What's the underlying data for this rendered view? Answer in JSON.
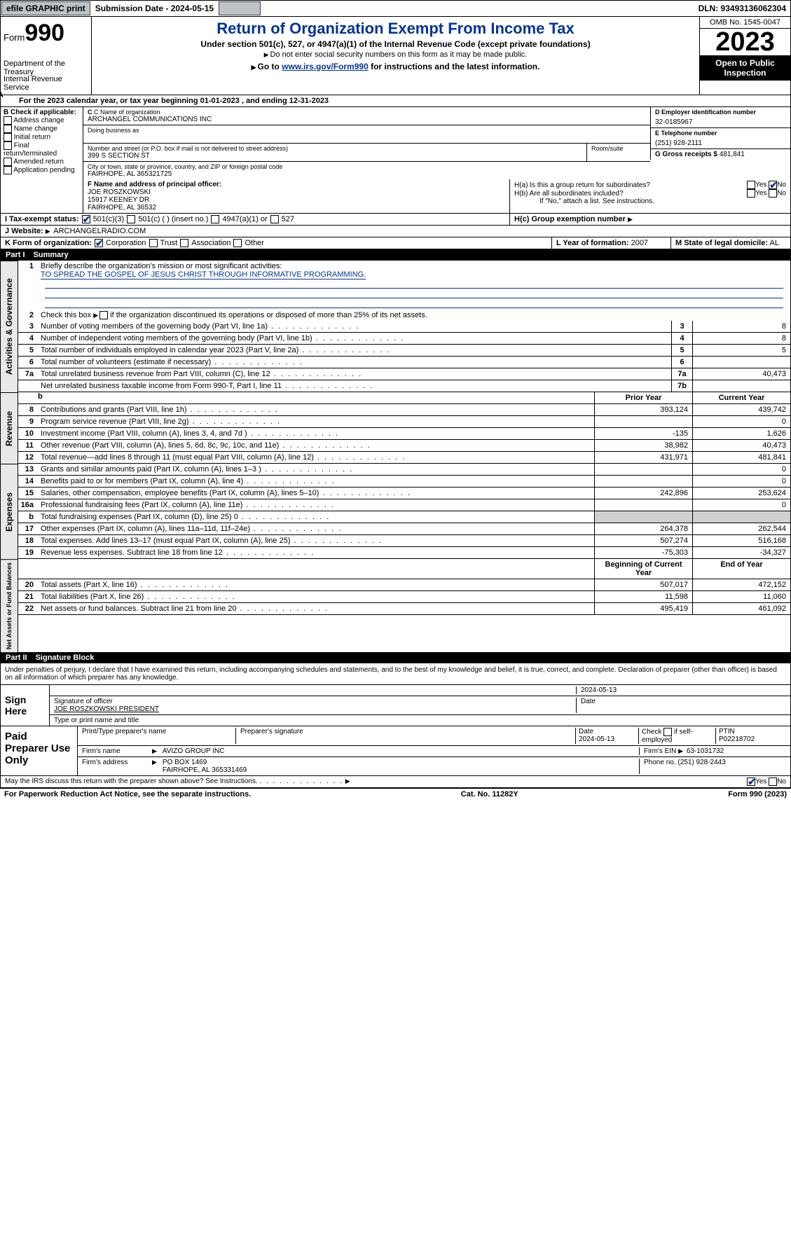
{
  "toolbar": {
    "efile": "efile GRAPHIC print",
    "submission_label": "Submission Date - 2024-05-15",
    "dln": "DLN: 93493136062304"
  },
  "header": {
    "form_label": "Form",
    "form_number": "990",
    "dept": "Department of the Treasury",
    "irs": "Internal Revenue Service",
    "title": "Return of Organization Exempt From Income Tax",
    "subtitle": "Under section 501(c), 527, or 4947(a)(1) of the Internal Revenue Code (except private foundations)",
    "ssn_note": "Do not enter social security numbers on this form as it may be made public.",
    "goto_prefix": "Go to ",
    "goto_link": "www.irs.gov/Form990",
    "goto_suffix": " for instructions and the latest information.",
    "omb": "OMB No. 1545-0047",
    "year": "2023",
    "open": "Open to Public Inspection"
  },
  "row_a": {
    "prefix": "A",
    "text": "For the 2023 calendar year, or tax year beginning ",
    "begin": "01-01-2023",
    "mid": "  , and ending ",
    "end": "12-31-2023"
  },
  "box_b": {
    "header": "B Check if applicable:",
    "items": [
      "Address change",
      "Name change",
      "Initial return",
      "Final return/terminated",
      "Amended return",
      "Application pending"
    ]
  },
  "box_c": {
    "name_label": "C Name of organization",
    "name": "ARCHANGEL COMMUNICATIONS INC",
    "dba_label": "Doing business as",
    "street_label": "Number and street (or P.O. box if mail is not delivered to street address)",
    "street": "399 S SECTION ST",
    "room_label": "Room/suite",
    "city_label": "City or town, state or province, country, and ZIP or foreign postal code",
    "city": "FAIRHOPE, AL  365321725"
  },
  "box_d": {
    "label": "D Employer identification number",
    "value": "32-0185967"
  },
  "box_e": {
    "label": "E Telephone number",
    "value": "(251) 928-2111"
  },
  "box_g": {
    "label": "G Gross receipts $",
    "value": "481,841"
  },
  "box_f": {
    "label": "F  Name and address of principal officer:",
    "name": "JOE ROSZKOWSKI",
    "addr1": "15917 KEENEY DR",
    "addr2": "FAIRHOPE, AL  36532"
  },
  "box_h": {
    "a": "H(a)  Is this a group return for subordinates?",
    "b": "H(b)  Are all subordinates included?",
    "b_note": "If \"No,\" attach a list. See instructions.",
    "c": "H(c)  Group exemption number",
    "yes": "Yes",
    "no": "No"
  },
  "row_i": {
    "label": "I   Tax-exempt status:",
    "opts": [
      "501(c)(3)",
      "501(c) (  ) (insert no.)",
      "4947(a)(1) or",
      "527"
    ]
  },
  "row_j": {
    "label": "J   Website:",
    "value": "ARCHANGELRADIO.COM"
  },
  "row_k": {
    "label": "K Form of organization:",
    "opts": [
      "Corporation",
      "Trust",
      "Association",
      "Other"
    ]
  },
  "row_l": {
    "label": "L Year of formation:",
    "value": "2007"
  },
  "row_m": {
    "label": "M State of legal domicile:",
    "value": "AL"
  },
  "part1": {
    "label": "Part I",
    "title": "Summary"
  },
  "summary": {
    "line1_label": "Briefly describe the organization's mission or most significant activities:",
    "line1_text": "TO SPREAD THE GOSPEL OF JESUS CHRIST THROUGH INFORMATIVE PROGRAMMING.",
    "line2": "Check this box      if the organization discontinued its operations or disposed of more than 25% of its net assets.",
    "sections": {
      "activities": "Activities & Governance",
      "revenue": "Revenue",
      "expenses": "Expenses",
      "netassets": "Net Assets or Fund Balances"
    },
    "cols": {
      "prior": "Prior Year",
      "current": "Current Year",
      "begin": "Beginning of Current Year",
      "end": "End of Year"
    },
    "rows_single": [
      {
        "n": "3",
        "t": "Number of voting members of the governing body (Part VI, line 1a)",
        "box": "3",
        "v": "8"
      },
      {
        "n": "4",
        "t": "Number of independent voting members of the governing body (Part VI, line 1b)",
        "box": "4",
        "v": "8"
      },
      {
        "n": "5",
        "t": "Total number of individuals employed in calendar year 2023 (Part V, line 2a)",
        "box": "5",
        "v": "5"
      },
      {
        "n": "6",
        "t": "Total number of volunteers (estimate if necessary)",
        "box": "6",
        "v": ""
      },
      {
        "n": "7a",
        "t": "Total unrelated business revenue from Part VIII, column (C), line 12",
        "box": "7a",
        "v": "40,473"
      },
      {
        "n": "",
        "t": "Net unrelated business taxable income from Form 990-T, Part I, line 11",
        "box": "7b",
        "v": ""
      }
    ],
    "rows_revenue": [
      {
        "n": "8",
        "t": "Contributions and grants (Part VIII, line 1h)",
        "p": "393,124",
        "c": "439,742"
      },
      {
        "n": "9",
        "t": "Program service revenue (Part VIII, line 2g)",
        "p": "",
        "c": "0"
      },
      {
        "n": "10",
        "t": "Investment income (Part VIII, column (A), lines 3, 4, and 7d )",
        "p": "-135",
        "c": "1,626"
      },
      {
        "n": "11",
        "t": "Other revenue (Part VIII, column (A), lines 5, 6d, 8c, 9c, 10c, and 11e)",
        "p": "38,982",
        "c": "40,473"
      },
      {
        "n": "12",
        "t": "Total revenue—add lines 8 through 11 (must equal Part VIII, column (A), line 12)",
        "p": "431,971",
        "c": "481,841"
      }
    ],
    "rows_expenses": [
      {
        "n": "13",
        "t": "Grants and similar amounts paid (Part IX, column (A), lines 1–3 )",
        "p": "",
        "c": "0"
      },
      {
        "n": "14",
        "t": "Benefits paid to or for members (Part IX, column (A), line 4)",
        "p": "",
        "c": "0"
      },
      {
        "n": "15",
        "t": "Salaries, other compensation, employee benefits (Part IX, column (A), lines 5–10)",
        "p": "242,896",
        "c": "253,624"
      },
      {
        "n": "16a",
        "t": "Professional fundraising fees (Part IX, column (A), line 11e)",
        "p": "",
        "c": "0"
      },
      {
        "n": "b",
        "t": "Total fundraising expenses (Part IX, column (D), line 25) 0",
        "p": "SHADE",
        "c": "SHADE"
      },
      {
        "n": "17",
        "t": "Other expenses (Part IX, column (A), lines 11a–11d, 11f–24e)",
        "p": "264,378",
        "c": "262,544"
      },
      {
        "n": "18",
        "t": "Total expenses. Add lines 13–17 (must equal Part IX, column (A), line 25)",
        "p": "507,274",
        "c": "516,168"
      },
      {
        "n": "19",
        "t": "Revenue less expenses. Subtract line 18 from line 12",
        "p": "-75,303",
        "c": "-34,327"
      }
    ],
    "rows_netassets": [
      {
        "n": "20",
        "t": "Total assets (Part X, line 16)",
        "p": "507,017",
        "c": "472,152"
      },
      {
        "n": "21",
        "t": "Total liabilities (Part X, line 26)",
        "p": "11,598",
        "c": "11,060"
      },
      {
        "n": "22",
        "t": "Net assets or fund balances. Subtract line 21 from line 20",
        "p": "495,419",
        "c": "461,092"
      }
    ]
  },
  "part2": {
    "label": "Part II",
    "title": "Signature Block"
  },
  "sig": {
    "perjury": "Under penalties of perjury, I declare that I have examined this return, including accompanying schedules and statements, and to the best of my knowledge and belief, it is true, correct, and complete. Declaration of preparer (other than officer) is based on all information of which preparer has any knowledge.",
    "sign_here": "Sign Here",
    "date": "2024-05-13",
    "sig_officer": "Signature of officer",
    "officer_name": "JOE ROSZKOWSKI  PRESIDENT",
    "type_name": "Type or print name and title",
    "date_label": "Date",
    "paid": "Paid Preparer Use Only",
    "print_name": "Print/Type preparer's name",
    "prep_sig": "Preparer's signature",
    "prep_date": "Date",
    "prep_date_val": "2024-05-13",
    "self_emp": "Check        if self-employed",
    "ptin_label": "PTIN",
    "ptin": "P02218702",
    "firm_name_label": "Firm's name",
    "firm_name": "AVIZO GROUP INC",
    "firm_ein_label": "Firm's EIN",
    "firm_ein": "63-1031732",
    "firm_addr_label": "Firm's address",
    "firm_addr1": "PO BOX 1469",
    "firm_addr2": "FAIRHOPE, AL  365331469",
    "phone_label": "Phone no.",
    "phone": "(251) 928-2443",
    "discuss": "May the IRS discuss this return with the preparer shown above? See Instructions."
  },
  "footer": {
    "left": "For Paperwork Reduction Act Notice, see the separate instructions.",
    "mid": "Cat. No. 11282Y",
    "right": "Form 990 (2023)"
  }
}
